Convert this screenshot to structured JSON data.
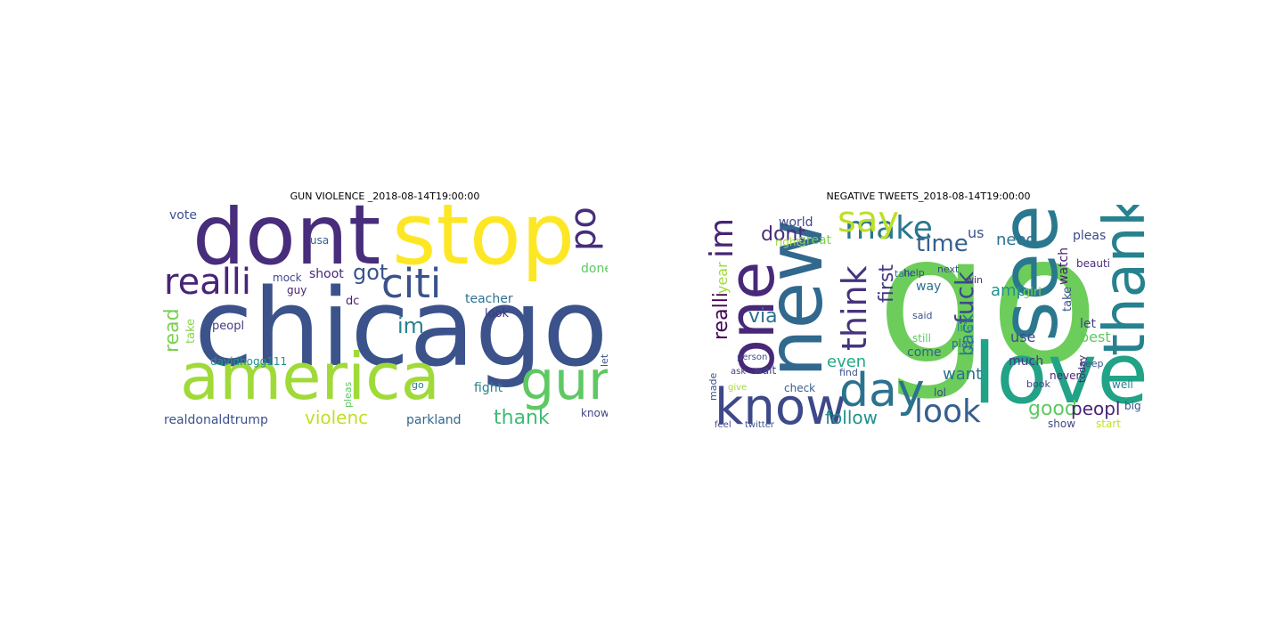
{
  "figure": {
    "panels": [
      {
        "title": "GUN VIOLENCE _2018-08-14T19:00:00",
        "words": [
          {
            "text": "chicago",
            "weight": 1.0,
            "color": "#3b528b"
          },
          {
            "text": "stop",
            "weight": 0.72,
            "color": "#fde725"
          },
          {
            "text": "dont",
            "weight": 0.7,
            "color": "#472d7b"
          },
          {
            "text": "america",
            "weight": 0.62,
            "color": "#a0da39"
          },
          {
            "text": "gun",
            "weight": 0.4,
            "color": "#5ec962"
          },
          {
            "text": "citi",
            "weight": 0.38,
            "color": "#3b528b"
          },
          {
            "text": "realli",
            "weight": 0.24,
            "color": "#482475"
          },
          {
            "text": "polic",
            "weight": 0.24,
            "color": "#472d7b"
          },
          {
            "text": "thank",
            "weight": 0.2,
            "color": "#3dbc74"
          },
          {
            "text": "violenc",
            "weight": 0.17,
            "color": "#c2df23"
          },
          {
            "text": "got",
            "weight": 0.2,
            "color": "#3b528b"
          },
          {
            "text": "im",
            "weight": 0.18,
            "color": "#26818e"
          },
          {
            "text": "realdonaldtrump",
            "weight": 0.13,
            "color": "#3b528b"
          },
          {
            "text": "read",
            "weight": 0.14,
            "color": "#7ad151"
          },
          {
            "text": "parkland",
            "weight": 0.11,
            "color": "#31688e"
          },
          {
            "text": "fight",
            "weight": 0.11,
            "color": "#26828e"
          },
          {
            "text": "davidhogg111",
            "weight": 0.1,
            "color": "#21918c"
          },
          {
            "text": "shoot",
            "weight": 0.1,
            "color": "#482878"
          },
          {
            "text": "teacher",
            "weight": 0.1,
            "color": "#2c728e"
          },
          {
            "text": "look",
            "weight": 0.1,
            "color": "#46337e"
          },
          {
            "text": "vote",
            "weight": 0.1,
            "color": "#3b528b"
          },
          {
            "text": "done",
            "weight": 0.1,
            "color": "#5ec962"
          },
          {
            "text": "usa",
            "weight": 0.09,
            "color": "#355f8d"
          },
          {
            "text": "mock",
            "weight": 0.09,
            "color": "#3e4989"
          },
          {
            "text": "guy",
            "weight": 0.09,
            "color": "#481f70"
          },
          {
            "text": "peopl",
            "weight": 0.1,
            "color": "#443983"
          },
          {
            "text": "take",
            "weight": 0.1,
            "color": "#86d549"
          },
          {
            "text": "dc",
            "weight": 0.1,
            "color": "#482173"
          },
          {
            "text": "know",
            "weight": 0.09,
            "color": "#404688"
          },
          {
            "text": "let",
            "weight": 0.08,
            "color": "#3b528b"
          },
          {
            "text": "go",
            "weight": 0.08,
            "color": "#2a788e"
          },
          {
            "text": "pleas",
            "weight": 0.07,
            "color": "#5ec962"
          }
        ]
      },
      {
        "title": "NEGATIVE TWEETS_2018-08-14T19:00:00",
        "words": [
          {
            "text": "go",
            "weight": 1.0,
            "color": "#6ccd5a"
          },
          {
            "text": "love",
            "weight": 0.6,
            "color": "#20a386"
          },
          {
            "text": "see",
            "weight": 0.6,
            "color": "#2a788e"
          },
          {
            "text": "new",
            "weight": 0.55,
            "color": "#31688e"
          },
          {
            "text": "one",
            "weight": 0.5,
            "color": "#482878"
          },
          {
            "text": "thank",
            "weight": 0.42,
            "color": "#26828e"
          },
          {
            "text": "know",
            "weight": 0.36,
            "color": "#3e4989"
          },
          {
            "text": "day",
            "weight": 0.36,
            "color": "#2c728e"
          },
          {
            "text": "make",
            "weight": 0.3,
            "color": "#2a788e"
          },
          {
            "text": "say",
            "weight": 0.3,
            "color": "#bddf26"
          },
          {
            "text": "think",
            "weight": 0.3,
            "color": "#46337e"
          },
          {
            "text": "look",
            "weight": 0.28,
            "color": "#355f8d"
          },
          {
            "text": "im",
            "weight": 0.26,
            "color": "#482475"
          },
          {
            "text": "time",
            "weight": 0.22,
            "color": "#355f8d"
          },
          {
            "text": "fuck",
            "weight": 0.2,
            "color": "#3e4989"
          },
          {
            "text": "good",
            "weight": 0.18,
            "color": "#5ec962"
          },
          {
            "text": "peopl",
            "weight": 0.18,
            "color": "#482475"
          },
          {
            "text": "follow",
            "weight": 0.18,
            "color": "#21918c"
          },
          {
            "text": "dont",
            "weight": 0.18,
            "color": "#472d7b"
          },
          {
            "text": "via",
            "weight": 0.16,
            "color": "#2c728e"
          },
          {
            "text": "realli",
            "weight": 0.16,
            "color": "#440154"
          },
          {
            "text": "first",
            "weight": 0.16,
            "color": "#443983"
          },
          {
            "text": "back",
            "weight": 0.16,
            "color": "#2a788e"
          },
          {
            "text": "amp",
            "weight": 0.15,
            "color": "#21918c"
          },
          {
            "text": "want",
            "weight": 0.14,
            "color": "#2c728e"
          },
          {
            "text": "even",
            "weight": 0.14,
            "color": "#22a884"
          },
          {
            "text": "need",
            "weight": 0.13,
            "color": "#2c728e"
          },
          {
            "text": "year",
            "weight": 0.13,
            "color": "#a0da39"
          },
          {
            "text": "us",
            "weight": 0.12,
            "color": "#3b528b"
          },
          {
            "text": "use",
            "weight": 0.11,
            "color": "#3e4989"
          },
          {
            "text": "best",
            "weight": 0.11,
            "color": "#5ec962"
          },
          {
            "text": "world",
            "weight": 0.1,
            "color": "#404688"
          },
          {
            "text": "great",
            "weight": 0.1,
            "color": "#7ad151"
          },
          {
            "text": "right",
            "weight": 0.09,
            "color": "#a0da39"
          },
          {
            "text": "pleas",
            "weight": 0.09,
            "color": "#3e4989"
          },
          {
            "text": "much",
            "weight": 0.09,
            "color": "#443983"
          },
          {
            "text": "let",
            "weight": 0.09,
            "color": "#414487"
          },
          {
            "text": "watch",
            "weight": 0.09,
            "color": "#482173"
          },
          {
            "text": "take",
            "weight": 0.09,
            "color": "#3b528b"
          },
          {
            "text": "girl",
            "weight": 0.09,
            "color": "#7ad151"
          },
          {
            "text": "come",
            "weight": 0.09,
            "color": "#355f8d"
          },
          {
            "text": "way",
            "weight": 0.09,
            "color": "#2c728e"
          },
          {
            "text": "life",
            "weight": 0.08,
            "color": "#26828e"
          },
          {
            "text": "play",
            "weight": 0.08,
            "color": "#31688e"
          },
          {
            "text": "check",
            "weight": 0.08,
            "color": "#355f8d"
          },
          {
            "text": "wait",
            "weight": 0.08,
            "color": "#404688"
          },
          {
            "text": "lol",
            "weight": 0.08,
            "color": "#3e4989"
          },
          {
            "text": "made",
            "weight": 0.08,
            "color": "#3b528b"
          },
          {
            "text": "said",
            "weight": 0.08,
            "color": "#3b528b"
          },
          {
            "text": "talk",
            "weight": 0.08,
            "color": "#2a788e"
          },
          {
            "text": "still",
            "weight": 0.08,
            "color": "#5ec962"
          },
          {
            "text": "help",
            "weight": 0.07,
            "color": "#3e4989"
          },
          {
            "text": "win",
            "weight": 0.07,
            "color": "#46337e"
          },
          {
            "text": "next",
            "weight": 0.07,
            "color": "#3e4989"
          },
          {
            "text": "never",
            "weight": 0.07,
            "color": "#482475"
          },
          {
            "text": "big",
            "weight": 0.07,
            "color": "#3b528b"
          },
          {
            "text": "well",
            "weight": 0.07,
            "color": "#26828e"
          },
          {
            "text": "today",
            "weight": 0.07,
            "color": "#482878"
          },
          {
            "text": "beauti",
            "weight": 0.07,
            "color": "#472d7b"
          },
          {
            "text": "show",
            "weight": 0.07,
            "color": "#3e4989"
          },
          {
            "text": "feel",
            "weight": 0.06,
            "color": "#414487"
          },
          {
            "text": "twitter",
            "weight": 0.06,
            "color": "#3b528b"
          },
          {
            "text": "start",
            "weight": 0.06,
            "color": "#c2df23"
          },
          {
            "text": "keep",
            "weight": 0.06,
            "color": "#3b528b"
          },
          {
            "text": "book",
            "weight": 0.06,
            "color": "#404688"
          },
          {
            "text": "person",
            "weight": 0.06,
            "color": "#3b528b"
          },
          {
            "text": "find",
            "weight": 0.06,
            "color": "#3b528b"
          },
          {
            "text": "ask",
            "weight": 0.06,
            "color": "#414487"
          },
          {
            "text": "give",
            "weight": 0.06,
            "color": "#a0da39"
          }
        ]
      }
    ]
  }
}
